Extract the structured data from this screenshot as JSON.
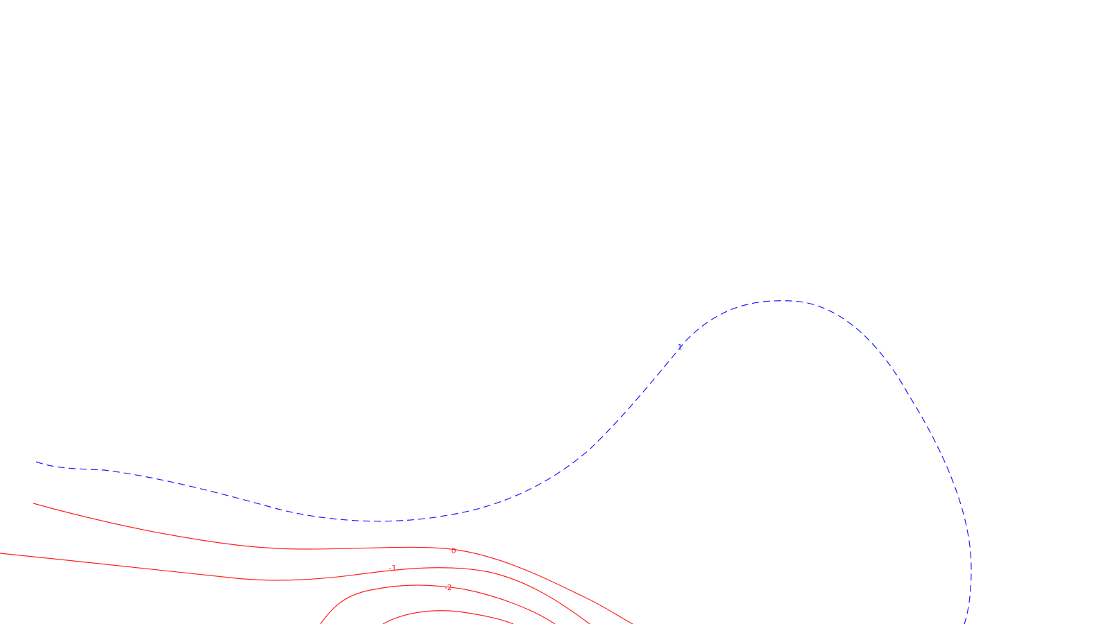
{
  "colors": {
    "background": "#ffffff",
    "positive_contour": "#1a1aff",
    "negative_contour": "#ff2020"
  },
  "chart_data": {
    "type": "contour",
    "contours": [
      {
        "level": "1",
        "style": "dashed",
        "color": "#1a1aff"
      },
      {
        "level": "0",
        "style": "solid",
        "color": "#ff2020"
      },
      {
        "level": "-1",
        "style": "solid",
        "color": "#ff2020"
      },
      {
        "level": "-2",
        "style": "solid",
        "color": "#ff2020"
      },
      {
        "level": "",
        "style": "solid",
        "color": "#ff2020"
      }
    ]
  }
}
